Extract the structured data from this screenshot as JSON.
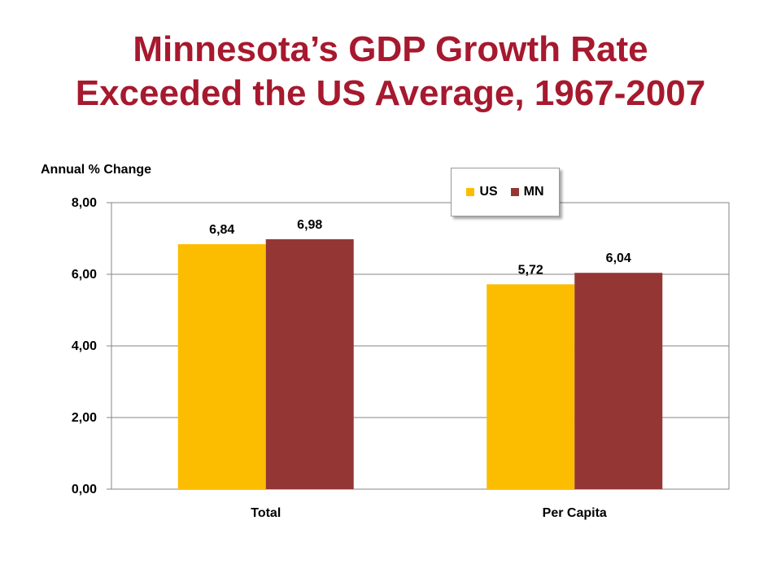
{
  "title_line1": "Minnesota’s GDP Growth Rate",
  "title_line2": "Exceeded the US Average, 1967-2007",
  "chart_data": {
    "type": "bar",
    "title": "Minnesota’s GDP Growth Rate Exceeded the US Average, 1967-2007",
    "ylabel": "Annual % Change",
    "xlabel": "",
    "categories": [
      "Total",
      "Per Capita"
    ],
    "series": [
      {
        "name": "US",
        "values": [
          6.84,
          5.72
        ],
        "labels": [
          "6,84",
          "5,72"
        ],
        "color": "#fcbd00"
      },
      {
        "name": "MN",
        "values": [
          6.98,
          6.04
        ],
        "labels": [
          "6,98",
          "6,04"
        ],
        "color": "#943634"
      }
    ],
    "ylim": [
      0,
      8
    ],
    "yticks": [
      0,
      2,
      4,
      6,
      8
    ],
    "ytick_labels": [
      "0,00",
      "2,00",
      "4,00",
      "6,00",
      "8,00"
    ],
    "grid": true,
    "legend_position": "top-right"
  }
}
